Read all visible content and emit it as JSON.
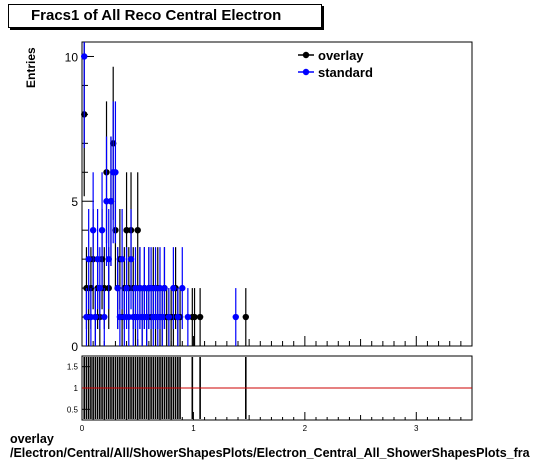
{
  "title": "Fracs1 of All Reco Central Electron",
  "ylabel": "Entries",
  "footer": {
    "line1": "overlay",
    "line2": "/Electron/Central/All/ShowerShapesPlots/Electron_Central_All_ShowerShapesPlots_fra"
  },
  "colors": {
    "overlay": "#000000",
    "standard": "#0000ff",
    "ratio_line": "#cc0000"
  },
  "chart_data": [
    {
      "type": "scatter",
      "title": "Fracs1 of All Reco Central Electron",
      "xlabel": "",
      "ylabel": "Entries",
      "xlim": [
        0,
        3.5
      ],
      "ylim": [
        0,
        10.5
      ],
      "yticks": [
        0,
        5,
        10
      ],
      "xticks": [
        0,
        1,
        2,
        3
      ],
      "legend": {
        "placement": "top-right",
        "entries": [
          "overlay",
          "standard"
        ]
      },
      "series": [
        {
          "name": "overlay",
          "color": "#000000",
          "points": [
            [
              0.02,
              8
            ],
            [
              0.04,
              2
            ],
            [
              0.06,
              1
            ],
            [
              0.08,
              2
            ],
            [
              0.1,
              3
            ],
            [
              0.12,
              1
            ],
            [
              0.14,
              2
            ],
            [
              0.16,
              1
            ],
            [
              0.18,
              3
            ],
            [
              0.2,
              2
            ],
            [
              0.22,
              6
            ],
            [
              0.24,
              2
            ],
            [
              0.26,
              5
            ],
            [
              0.28,
              7
            ],
            [
              0.3,
              4
            ],
            [
              0.32,
              2
            ],
            [
              0.34,
              3
            ],
            [
              0.36,
              1
            ],
            [
              0.38,
              2
            ],
            [
              0.4,
              4
            ],
            [
              0.42,
              2
            ],
            [
              0.44,
              4
            ],
            [
              0.46,
              2
            ],
            [
              0.48,
              1
            ],
            [
              0.5,
              4
            ],
            [
              0.52,
              2
            ],
            [
              0.54,
              1
            ],
            [
              0.56,
              2
            ],
            [
              0.58,
              1
            ],
            [
              0.6,
              2
            ],
            [
              0.62,
              1
            ],
            [
              0.64,
              2
            ],
            [
              0.66,
              1
            ],
            [
              0.68,
              2
            ],
            [
              0.7,
              1
            ],
            [
              0.72,
              1
            ],
            [
              0.74,
              2
            ],
            [
              0.76,
              1
            ],
            [
              0.78,
              1
            ],
            [
              0.8,
              1
            ],
            [
              0.82,
              1
            ],
            [
              0.84,
              2
            ],
            [
              0.86,
              1
            ],
            [
              0.88,
              1
            ],
            [
              0.99,
              1
            ],
            [
              1.01,
              1
            ],
            [
              1.06,
              1
            ],
            [
              1.47,
              1
            ]
          ]
        },
        {
          "name": "standard",
          "color": "#0000ff",
          "points": [
            [
              0.02,
              10
            ],
            [
              0.04,
              1
            ],
            [
              0.06,
              3
            ],
            [
              0.08,
              1
            ],
            [
              0.1,
              4
            ],
            [
              0.12,
              1
            ],
            [
              0.14,
              3
            ],
            [
              0.16,
              2
            ],
            [
              0.18,
              4
            ],
            [
              0.2,
              1
            ],
            [
              0.22,
              5
            ],
            [
              0.24,
              3
            ],
            [
              0.26,
              5
            ],
            [
              0.28,
              6
            ],
            [
              0.3,
              6
            ],
            [
              0.32,
              2
            ],
            [
              0.34,
              1
            ],
            [
              0.36,
              3
            ],
            [
              0.38,
              1
            ],
            [
              0.4,
              2
            ],
            [
              0.42,
              1
            ],
            [
              0.44,
              3
            ],
            [
              0.46,
              1
            ],
            [
              0.48,
              2
            ],
            [
              0.5,
              1
            ],
            [
              0.52,
              2
            ],
            [
              0.54,
              1
            ],
            [
              0.56,
              2
            ],
            [
              0.58,
              1
            ],
            [
              0.6,
              2
            ],
            [
              0.62,
              2
            ],
            [
              0.64,
              1
            ],
            [
              0.66,
              2
            ],
            [
              0.68,
              1
            ],
            [
              0.7,
              2
            ],
            [
              0.72,
              1
            ],
            [
              0.74,
              2
            ],
            [
              0.78,
              1
            ],
            [
              0.82,
              2
            ],
            [
              0.86,
              1
            ],
            [
              0.9,
              2
            ],
            [
              0.95,
              1
            ],
            [
              1.38,
              1
            ]
          ]
        }
      ]
    },
    {
      "type": "line",
      "title": "",
      "xlabel": "",
      "ylabel": "",
      "xlim": [
        0,
        3.5
      ],
      "ylim": [
        0.25,
        1.75
      ],
      "yticks": [
        0.5,
        1,
        1.5
      ],
      "xticks": [
        0,
        1,
        2,
        3
      ],
      "reference_line": 1,
      "series": [
        {
          "name": "",
          "color": "#000000",
          "ratio_bars_x": [
            0.02,
            0.04,
            0.06,
            0.08,
            0.1,
            0.12,
            0.14,
            0.16,
            0.18,
            0.2,
            0.22,
            0.24,
            0.26,
            0.28,
            0.3,
            0.32,
            0.34,
            0.36,
            0.38,
            0.4,
            0.42,
            0.44,
            0.46,
            0.48,
            0.5,
            0.52,
            0.54,
            0.56,
            0.58,
            0.6,
            0.62,
            0.64,
            0.66,
            0.68,
            0.7,
            0.72,
            0.74,
            0.76,
            0.78,
            0.8,
            0.82,
            0.84,
            0.86,
            0.88,
            0.99,
            1.06,
            1.47
          ]
        }
      ]
    }
  ]
}
